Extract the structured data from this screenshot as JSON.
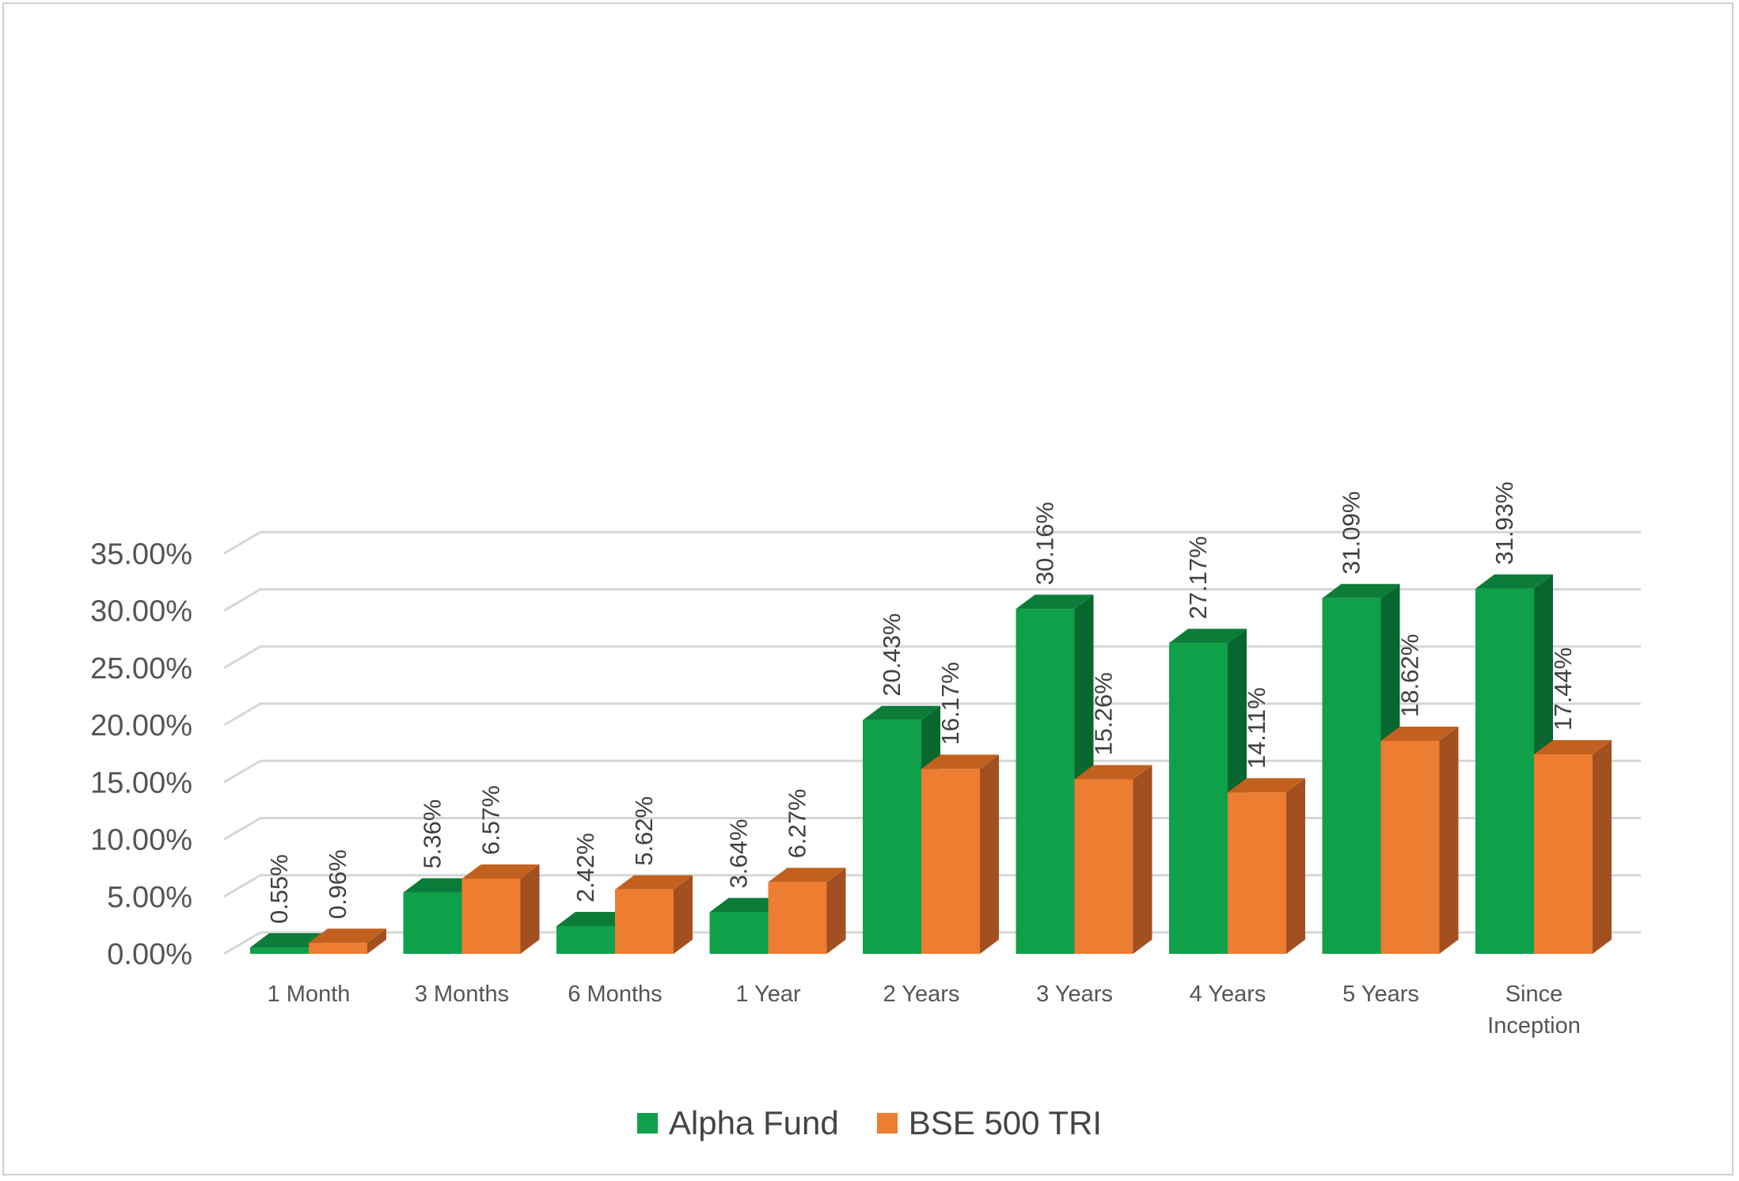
{
  "chart_data": {
    "type": "bar",
    "style": "3d-clustered",
    "categories": [
      "1 Month",
      "3 Months",
      "6 Months",
      "1 Year",
      "2 Years",
      "3 Years",
      "4 Years",
      "5 Years",
      "Since Inception"
    ],
    "series": [
      {
        "name": "Alpha Fund",
        "color": "#0fa04a",
        "side_color": "#08672e",
        "top_color": "#0b7d38",
        "values": [
          0.55,
          5.36,
          2.42,
          3.64,
          20.43,
          30.16,
          27.17,
          31.09,
          31.93
        ],
        "labels": [
          "0.55%",
          "5.36%",
          "2.42%",
          "3.64%",
          "20.43%",
          "30.16%",
          "27.17%",
          "31.09%",
          "31.93%"
        ]
      },
      {
        "name": "BSE 500 TRI",
        "color": "#ed7d31",
        "side_color": "#a35020",
        "top_color": "#c2611f",
        "values": [
          0.96,
          6.57,
          5.62,
          6.27,
          16.17,
          15.26,
          14.11,
          18.62,
          17.44
        ],
        "labels": [
          "0.96%",
          "6.57%",
          "5.62%",
          "6.27%",
          "16.17%",
          "15.26%",
          "14.11%",
          "18.62%",
          "17.44%"
        ]
      }
    ],
    "yticks": [
      "0.00%",
      "5.00%",
      "10.00%",
      "15.00%",
      "20.00%",
      "25.00%",
      "30.00%",
      "35.00%"
    ],
    "ylim": [
      0,
      35
    ],
    "grid": true,
    "legend_position": "bottom"
  }
}
